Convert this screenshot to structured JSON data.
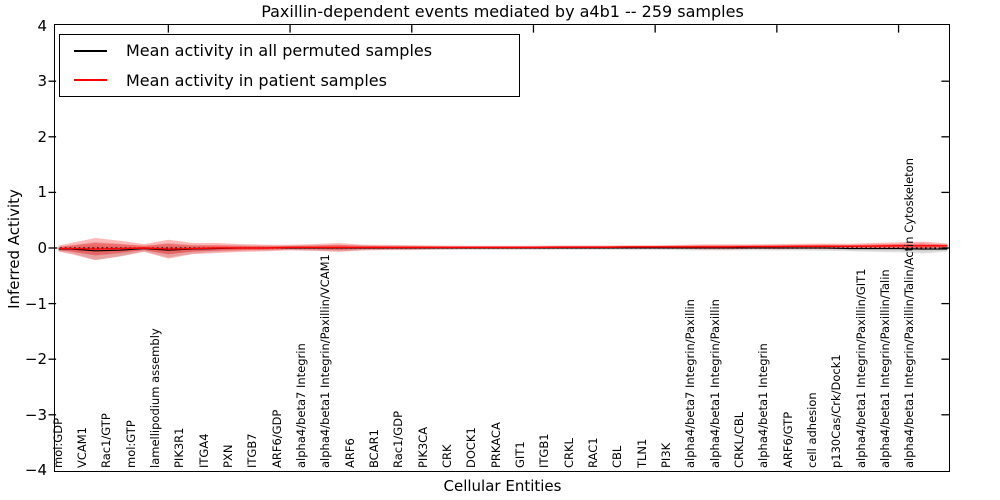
{
  "title": "Paxillin-dependent events mediated by a4b1 -- 259 samples",
  "legend": {
    "items": [
      {
        "id": "permuted",
        "label": "Mean activity in all permuted samples",
        "color": "#000000"
      },
      {
        "id": "patient",
        "label": "Mean activity in patient samples",
        "color": "#ff0000"
      }
    ]
  },
  "axes": {
    "ylabel": "Inferred Activity",
    "xlabel": "Cellular Entities",
    "ytick_labels": [
      "4",
      "3",
      "2",
      "1",
      "0",
      "−1",
      "−2",
      "−3",
      "−4"
    ],
    "ytick_values": [
      4,
      3,
      2,
      1,
      0,
      -1,
      -2,
      -3,
      -4
    ]
  },
  "chart_data": {
    "type": "line",
    "title": "Paxillin-dependent events mediated by a4b1 -- 259 samples",
    "xlabel": "Cellular Entities",
    "ylabel": "Inferred Activity",
    "ylim": [
      -4,
      4
    ],
    "grid": false,
    "legend_position": "upper left",
    "zero_line": "dotted black at y=0",
    "categories": [
      "mol:GDP",
      "VCAM1",
      "Rac1/GTP",
      "mol:GTP",
      "lamellipodium assembly",
      "PIK3R1",
      "ITGA4",
      "PXN",
      "ITGB7",
      "ARF6/GDP",
      "alpha4/beta7 Integrin",
      "alpha4/beta1 Integrin/Paxillin/VCAM1",
      "ARF6",
      "BCAR1",
      "Rac1/GDP",
      "PIK3CA",
      "CRK",
      "DOCK1",
      "PRKACA",
      "GIT1",
      "ITGB1",
      "CRKL",
      "RAC1",
      "CBL",
      "TLN1",
      "PI3K",
      "alpha4/beta7 Integrin/Paxillin",
      "alpha4/beta1 Integrin/Paxillin",
      "CRKL/CBL",
      "alpha4/beta1 Integrin",
      "ARF6/GTP",
      "cell adhesion",
      "p130Cas/Crk/Dock1",
      "alpha4/beta1 Integrin/Paxillin/GIT1",
      "alpha4/beta1 Integrin/Paxillin/Talin",
      "alpha4/beta1 Integrin/Paxillin/Talin/Actin Cytoskeleton"
    ],
    "series": [
      {
        "name": "Mean activity in all permuted samples",
        "line_color": "#000000",
        "band_color": "#999999",
        "values": [
          -0.02,
          -0.05,
          -0.04,
          -0.01,
          -0.04,
          -0.02,
          -0.01,
          0,
          0,
          0,
          0,
          0,
          0,
          0,
          0,
          0,
          0,
          0,
          0,
          0,
          0,
          0,
          0,
          0,
          0,
          0,
          0,
          0,
          0,
          0,
          0,
          0,
          -0.01,
          -0.01,
          -0.01,
          -0.02
        ],
        "std": [
          0.07,
          0.16,
          0.12,
          0.05,
          0.13,
          0.08,
          0.06,
          0.05,
          0.045,
          0.04,
          0.05,
          0.06,
          0.045,
          0.04,
          0.04,
          0.035,
          0.035,
          0.035,
          0.035,
          0.035,
          0.035,
          0.035,
          0.035,
          0.035,
          0.035,
          0.04,
          0.045,
          0.045,
          0.04,
          0.045,
          0.045,
          0.05,
          0.05,
          0.06,
          0.07,
          0.08
        ]
      },
      {
        "name": "Mean activity in patient samples",
        "line_color": "#ff0000",
        "band_color": "#ff0000",
        "values": [
          -0.01,
          -0.02,
          -0.01,
          0,
          -0.02,
          -0.01,
          0,
          0,
          0,
          0.01,
          0.01,
          0.01,
          0.01,
          0.01,
          0.01,
          0.01,
          0.01,
          0.01,
          0.01,
          0.01,
          0.015,
          0.015,
          0.015,
          0.02,
          0.02,
          0.02,
          0.02,
          0.02,
          0.025,
          0.025,
          0.03,
          0.03,
          0.03,
          0.035,
          0.04,
          0.04
        ],
        "std": [
          0.1,
          0.2,
          0.14,
          0.07,
          0.17,
          0.1,
          0.09,
          0.07,
          0.06,
          0.05,
          0.06,
          0.08,
          0.05,
          0.045,
          0.04,
          0.035,
          0.03,
          0.03,
          0.03,
          0.03,
          0.03,
          0.03,
          0.03,
          0.03,
          0.03,
          0.035,
          0.045,
          0.045,
          0.04,
          0.045,
          0.045,
          0.05,
          0.045,
          0.055,
          0.06,
          0.075
        ]
      }
    ]
  }
}
